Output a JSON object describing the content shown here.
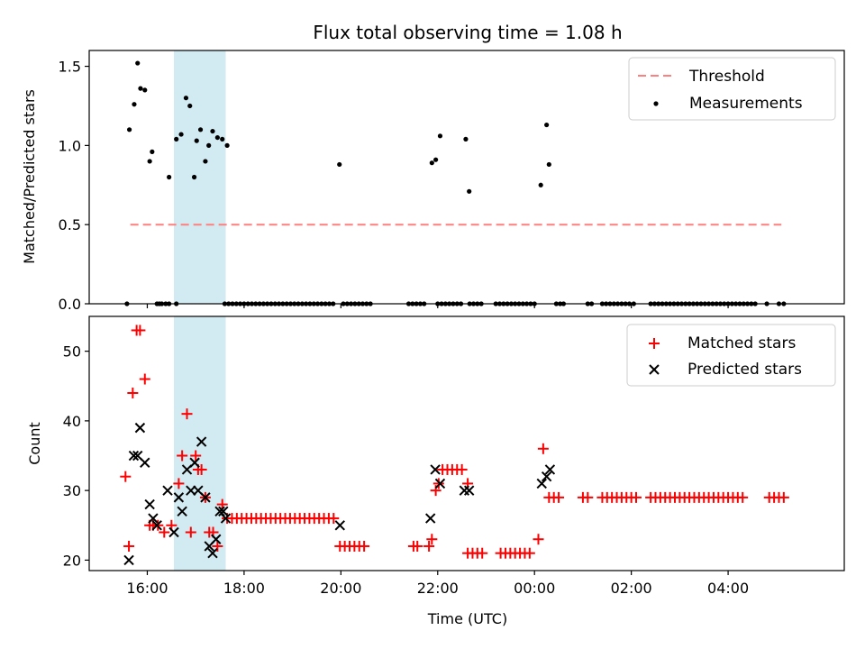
{
  "chart_data": {
    "type": "scatter",
    "title": "Flux total observing time = 1.08 h",
    "xlabel": "Time (UTC)",
    "x_tick_labels": [
      "16:00",
      "18:00",
      "20:00",
      "22:00",
      "00:00",
      "02:00",
      "04:00"
    ],
    "x_ticks_hours": [
      16,
      18,
      20,
      22,
      24,
      26,
      28
    ],
    "xlim_hours": [
      14.8,
      30.4
    ],
    "highlight_span_hours": [
      16.55,
      17.62
    ],
    "highlight_color": "#add8e6",
    "top_panel": {
      "ylabel": "Matched/Predicted stars",
      "ylim": [
        0,
        1.6
      ],
      "y_ticks": [
        0.0,
        0.5,
        1.0,
        1.5
      ],
      "y_tick_labels": [
        "0.0",
        "0.5",
        "1.0",
        "1.5"
      ],
      "legend_position": "top-right",
      "threshold": {
        "name": "Threshold",
        "value": 0.5,
        "x_range_hours": [
          15.65,
          29.1
        ],
        "color": "#ff7f7f"
      },
      "measurements": {
        "name": "Measurements",
        "color": "#000000",
        "x": [
          15.58,
          15.63,
          15.73,
          15.8,
          15.86,
          15.95,
          16.05,
          16.1,
          16.25,
          16.45,
          16.6,
          16.7,
          16.8,
          16.88,
          16.97,
          17.02,
          17.1,
          17.2,
          17.27,
          17.35,
          17.45,
          17.55,
          17.65,
          19.97,
          21.88,
          21.96,
          22.05,
          22.58,
          22.65,
          24.13,
          24.25,
          24.3
        ],
        "y": [
          0.0,
          1.1,
          1.26,
          1.52,
          1.36,
          1.35,
          0.9,
          0.96,
          0.0,
          0.8,
          1.04,
          1.07,
          1.3,
          1.25,
          0.8,
          1.03,
          1.1,
          0.9,
          1.0,
          1.09,
          1.05,
          1.04,
          1.0,
          0.88,
          0.89,
          0.91,
          1.06,
          1.04,
          0.71,
          0.75,
          1.13,
          0.88
        ],
        "zero_x": [
          16.2,
          16.3,
          16.38,
          16.45,
          16.6,
          17.6,
          17.68,
          17.76,
          17.84,
          17.92,
          18.0,
          18.08,
          18.16,
          18.24,
          18.32,
          18.4,
          18.48,
          18.56,
          18.64,
          18.72,
          18.8,
          18.88,
          18.96,
          19.04,
          19.12,
          19.2,
          19.28,
          19.36,
          19.44,
          19.52,
          19.6,
          19.68,
          19.76,
          19.84,
          20.05,
          20.13,
          20.21,
          20.29,
          20.37,
          20.45,
          20.53,
          20.61,
          21.4,
          21.48,
          21.56,
          21.64,
          21.72,
          22.0,
          22.08,
          22.16,
          22.24,
          22.32,
          22.4,
          22.48,
          22.66,
          22.74,
          22.82,
          22.9,
          23.2,
          23.28,
          23.36,
          23.44,
          23.52,
          23.6,
          23.68,
          23.76,
          23.84,
          23.92,
          24.0,
          24.45,
          24.53,
          24.6,
          25.1,
          25.18,
          25.4,
          25.48,
          25.56,
          25.64,
          25.72,
          25.8,
          25.88,
          25.96,
          26.05,
          26.4,
          26.48,
          26.56,
          26.64,
          26.72,
          26.8,
          26.88,
          26.96,
          27.04,
          27.12,
          27.2,
          27.28,
          27.36,
          27.44,
          27.52,
          27.6,
          27.68,
          27.76,
          27.84,
          27.92,
          28.0,
          28.08,
          28.16,
          28.24,
          28.32,
          28.4,
          28.48,
          28.56,
          28.8,
          29.05,
          29.15
        ]
      }
    },
    "bottom_panel": {
      "ylabel": "Count",
      "ylim": [
        18.5,
        55.0
      ],
      "y_ticks": [
        20,
        30,
        40,
        50
      ],
      "y_tick_labels": [
        "20",
        "30",
        "40",
        "50"
      ],
      "legend_position": "top-right",
      "matched": {
        "name": "Matched stars",
        "color": "#ff0000",
        "x": [
          15.55,
          15.62,
          15.7,
          15.78,
          15.85,
          15.95,
          16.05,
          16.12,
          16.22,
          16.35,
          16.5,
          16.65,
          16.72,
          16.82,
          16.9,
          17.0,
          17.05,
          17.12,
          17.2,
          17.28,
          17.36,
          17.45,
          17.55,
          21.5,
          21.58,
          21.82,
          21.88,
          21.96,
          22.02,
          22.62,
          24.08,
          24.18
        ],
        "y": [
          32,
          22,
          44,
          53,
          53,
          46,
          25,
          25,
          25,
          24,
          25,
          31,
          35,
          41,
          24,
          35,
          33,
          33,
          29,
          24,
          24,
          22,
          28,
          22,
          22,
          22,
          23,
          30,
          31,
          31,
          23,
          36
        ],
        "runs": [
          {
            "y": 26,
            "x_start": 17.65,
            "x_end": 19.85,
            "step": 0.1
          },
          {
            "y": 22,
            "x_start": 19.98,
            "x_end": 20.55,
            "step": 0.1
          },
          {
            "y": 33,
            "x_start": 22.1,
            "x_end": 22.5,
            "step": 0.1
          },
          {
            "y": 21,
            "x_start": 22.62,
            "x_end": 22.92,
            "step": 0.1
          },
          {
            "y": 21,
            "x_start": 23.3,
            "x_end": 23.95,
            "step": 0.1
          },
          {
            "y": 29,
            "x_start": 24.3,
            "x_end": 24.55,
            "step": 0.1
          },
          {
            "y": 29,
            "x_start": 25.0,
            "x_end": 25.1,
            "step": 0.1
          },
          {
            "y": 29,
            "x_start": 25.4,
            "x_end": 26.1,
            "step": 0.1
          },
          {
            "y": 29,
            "x_start": 26.4,
            "x_end": 28.35,
            "step": 0.1
          },
          {
            "y": 29,
            "x_start": 28.85,
            "x_end": 29.15,
            "step": 0.1
          }
        ]
      },
      "predicted": {
        "name": "Predicted stars",
        "color": "#000000",
        "x": [
          15.62,
          15.72,
          15.8,
          15.85,
          15.95,
          16.05,
          16.12,
          16.2,
          16.42,
          16.55,
          16.65,
          16.72,
          16.82,
          16.9,
          16.98,
          17.05,
          17.12,
          17.2,
          17.28,
          17.35,
          17.42,
          17.5,
          17.57,
          17.62,
          19.98,
          21.85,
          21.95,
          22.05,
          22.55,
          22.65,
          24.15,
          24.25,
          24.32
        ],
        "y": [
          20,
          35,
          35,
          39,
          34,
          28,
          26,
          25,
          30,
          24,
          29,
          27,
          33,
          30,
          34,
          30,
          37,
          29,
          22,
          21,
          23,
          27,
          27,
          26,
          25,
          26,
          33,
          31,
          30,
          30,
          31,
          32,
          33
        ]
      }
    }
  }
}
